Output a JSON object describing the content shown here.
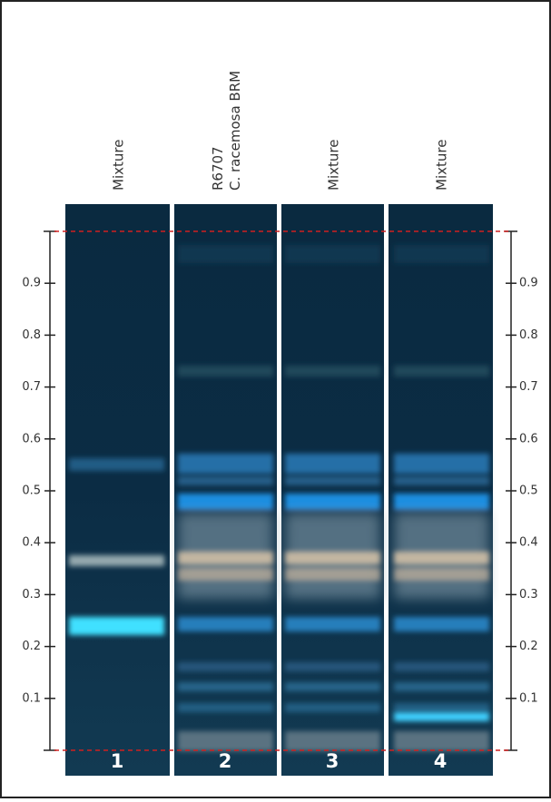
{
  "lanes": [
    {
      "label": [
        "Mixture"
      ],
      "number": "1"
    },
    {
      "label": [
        "R6707",
        "C. racemosa BRM"
      ],
      "number": "2"
    },
    {
      "label": [
        "Mixture"
      ],
      "number": "3"
    },
    {
      "label": [
        "Mixture"
      ],
      "number": "4"
    }
  ],
  "scale": {
    "range": [
      0,
      1
    ],
    "ticks": [
      0.1,
      0.2,
      0.3,
      0.4,
      0.5,
      0.6,
      0.7,
      0.8,
      0.9
    ]
  }
}
